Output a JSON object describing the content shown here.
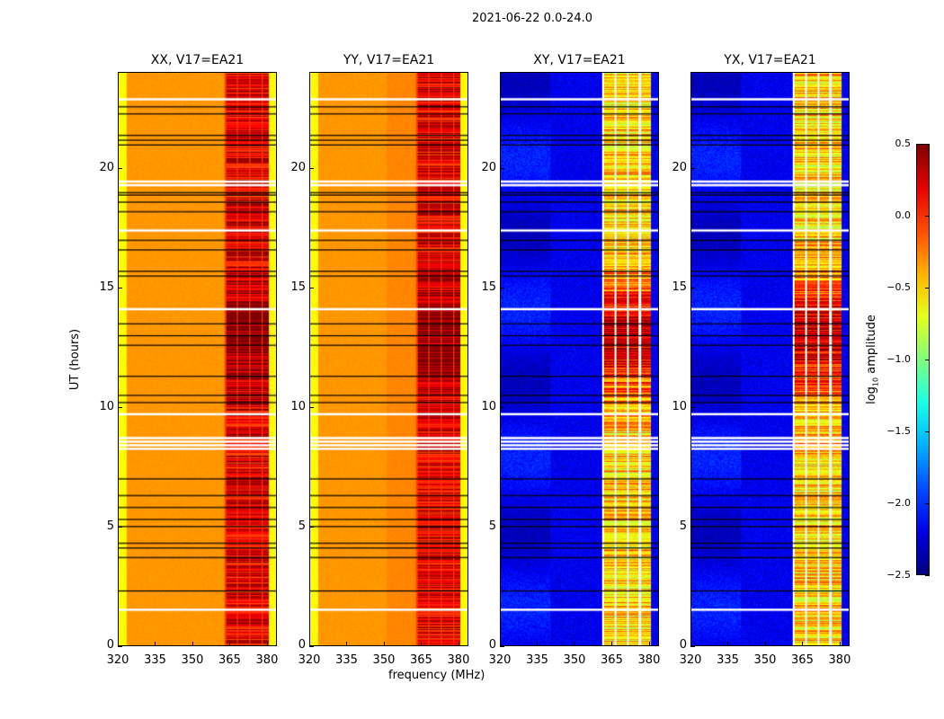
{
  "suptitle": "2021-06-22 0.0-24.0",
  "chart_data": {
    "type": "heatmap",
    "title": "2021-06-22 0.0-24.0",
    "xlabel": "frequency (MHz)",
    "ylabel": "UT (hours)",
    "xlim": [
      320,
      384
    ],
    "ylim": [
      0,
      24
    ],
    "xticks": [
      "320",
      "335",
      "350",
      "365",
      "380"
    ],
    "yticks": [
      "0",
      "5",
      "10",
      "15",
      "20"
    ],
    "panels": [
      {
        "title": "XX, V17=EA21",
        "kind": "parallel"
      },
      {
        "title": "YY, V17=EA21",
        "kind": "parallel"
      },
      {
        "title": "XY, V17=EA21",
        "kind": "cross"
      },
      {
        "title": "YX, V17=EA21",
        "kind": "cross"
      }
    ],
    "parallel_level": {
      "baseline": -0.35,
      "edge": -0.65,
      "band_363_381": 0.15
    },
    "cross_level": {
      "baseline": -2.3,
      "band_361_381": -0.6
    },
    "flagged_white_ut": [
      1.5,
      8.25,
      8.4,
      8.55,
      8.7,
      19.3,
      19.45,
      22.9,
      17.4,
      14.1,
      9.7
    ],
    "flagged_black_ut": [
      2.3,
      3.7,
      4.1,
      4.3,
      5.0,
      5.3,
      5.8,
      6.3,
      7.0,
      10.2,
      10.5,
      11.3,
      12.6,
      13.0,
      13.5,
      15.5,
      15.7,
      16.6,
      17.0,
      18.2,
      18.6,
      18.9,
      19.0,
      21.0,
      21.2,
      21.4,
      22.3,
      22.6
    ],
    "colorbar": {
      "label": "log10 amplitude",
      "range": [
        -2.5,
        0.5
      ],
      "ticks": [
        "0.5",
        "0.0",
        "−0.5",
        "−1.0",
        "−1.5",
        "−2.0",
        "−2.5"
      ],
      "colormap": "jet"
    }
  }
}
